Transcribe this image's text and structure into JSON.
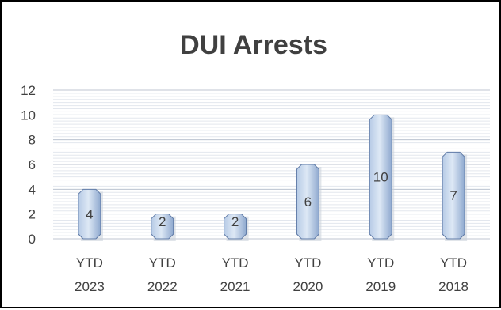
{
  "chart_data": {
    "type": "bar",
    "title": "DUI Arrests",
    "xlabel": "",
    "ylabel": "",
    "ylim": [
      0,
      12
    ],
    "yticks": [
      0,
      2,
      4,
      6,
      8,
      10,
      12
    ],
    "grid": true,
    "legend": "none",
    "categories": [
      [
        "YTD",
        "2023"
      ],
      [
        "YTD",
        "2022"
      ],
      [
        "YTD",
        "2021"
      ],
      [
        "YTD",
        "2020"
      ],
      [
        "YTD",
        "2019"
      ],
      [
        "YTD",
        "2018"
      ]
    ],
    "values": [
      4,
      2,
      2,
      6,
      10,
      7
    ],
    "colors": {
      "bar_light": "#dde8f5",
      "bar_mid": "#b7cbe6",
      "bar_dark": "#8fa9cf",
      "bar_edge": "#5f7aa6",
      "grid_major": "#bfc6d2",
      "grid_minor": "#e3e7ee",
      "text": "#404040"
    }
  }
}
